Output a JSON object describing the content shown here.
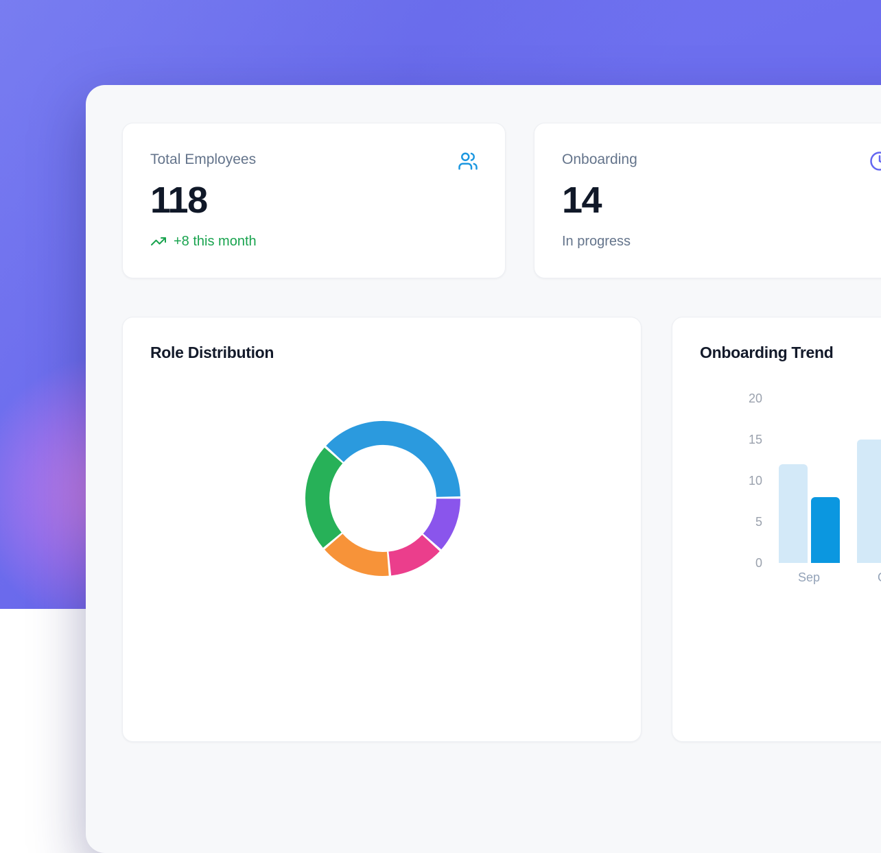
{
  "theme": {
    "background_purple": "#6c6def",
    "background_glow_pink": "#e285e2",
    "panel_background": "#f7f8fa",
    "card_background": "#ffffff",
    "text_dark": "#101828",
    "text_gray": "#64748b",
    "text_axis_gray": "#94a3b8",
    "positive_green": "#18a34e",
    "users_icon_blue": "#1b97e0",
    "clock_icon_indigo": "#6366f1"
  },
  "stats": [
    {
      "label": "Total Employees",
      "value": "118",
      "sub": "+8 this month",
      "sub_type": "positive",
      "icon": "users-icon",
      "icon_color": "#1b97e0",
      "sub_color": "#18a34e"
    },
    {
      "label": "Onboarding",
      "value": "14",
      "sub": "In progress",
      "sub_type": "neutral",
      "icon": "clock-icon",
      "icon_color": "#6366f1",
      "sub_color": "#64748b"
    }
  ],
  "chart_data": [
    {
      "type": "pie",
      "variant": "donut",
      "title": "Role Distribution",
      "legend": false,
      "segment_labels_visible": false,
      "start_angle_deg": -48,
      "direction": "clockwise",
      "total": 118,
      "segments": [
        {
          "label": "segment-blue",
          "color": "#2b9ade",
          "value": 45,
          "percent": 38.1
        },
        {
          "label": "segment-purple",
          "color": "#8a55ec",
          "value": 14,
          "percent": 11.9
        },
        {
          "label": "segment-pink",
          "color": "#eb3e8c",
          "value": 14,
          "percent": 11.9
        },
        {
          "label": "segment-orange",
          "color": "#f79339",
          "value": 18,
          "percent": 15.3
        },
        {
          "label": "segment-green",
          "color": "#27b158",
          "value": 27,
          "percent": 22.9
        }
      ]
    },
    {
      "type": "bar",
      "title": "Onboarding Trend",
      "categories": [
        "Sep",
        "Oct"
      ],
      "series": [
        {
          "name": "light-blue-series",
          "color": "#d3e9f8",
          "values": [
            12,
            15
          ]
        },
        {
          "name": "dark-blue-series",
          "color": "#0b97e0",
          "values": [
            8,
            null
          ]
        }
      ],
      "ylim": [
        0,
        20
      ],
      "yticks": [
        0,
        5,
        10,
        15,
        20
      ],
      "grid": false,
      "legend_position": "none"
    }
  ]
}
